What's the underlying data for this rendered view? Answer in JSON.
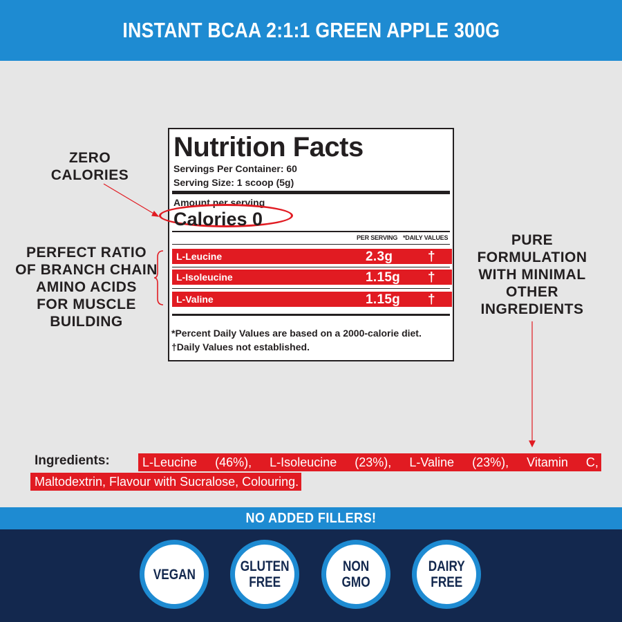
{
  "header": {
    "title": "INSTANT BCAA 2:1:1 GREEN APPLE 300G"
  },
  "colors": {
    "accent_blue": "#1e8bd2",
    "navy": "#13284e",
    "highlight_red": "#e11b22",
    "background": "#e6e6e6"
  },
  "nutrition": {
    "title": "Nutrition Facts",
    "servings_per_container": "Servings Per Container: 60",
    "serving_size": "Serving Size: 1 scoop (5g)",
    "amount_per_serving": "Amount per serving",
    "calories": "Calories 0",
    "col_per_serving": "PER SERVING",
    "col_daily_values": "*DAILY VALUES",
    "rows": [
      {
        "name": "L-Leucine",
        "value": "2.3g",
        "dv": "†"
      },
      {
        "name": "L-Isoleucine",
        "value": "1.15g",
        "dv": "†"
      },
      {
        "name": "L-Valine",
        "value": "1.15g",
        "dv": "†"
      }
    ],
    "footnote_1": "*Percent Daily Values are based on a 2000-calorie diet.",
    "footnote_2": "†Daily Values not established."
  },
  "annotations": {
    "zero_calories": [
      "ZERO",
      "CALORIES"
    ],
    "ratio": [
      "PERFECT RATIO",
      "OF BRANCH CHAIN",
      "AMINO ACIDS",
      "FOR MUSCLE",
      "BUILDING"
    ],
    "pure": [
      "PURE",
      "FORMULATION",
      "WITH MINIMAL",
      "OTHER",
      "INGREDIENTS"
    ]
  },
  "ingredients": {
    "label": "Ingredients:",
    "line1": [
      "L-Leucine",
      "(46%),",
      "L-Isoleucine",
      "(23%),",
      "L-Valine",
      "(23%),",
      "Vitamin",
      "C,"
    ],
    "line2": "Maltodextrin, Flavour with Sucralose, Colouring."
  },
  "band": {
    "text": "NO ADDED FILLERS!"
  },
  "badges": [
    {
      "line1": "VEGAN",
      "line2": ""
    },
    {
      "line1": "GLUTEN",
      "line2": "FREE"
    },
    {
      "line1": "NON",
      "line2": "GMO"
    },
    {
      "line1": "DAIRY",
      "line2": "FREE"
    }
  ]
}
